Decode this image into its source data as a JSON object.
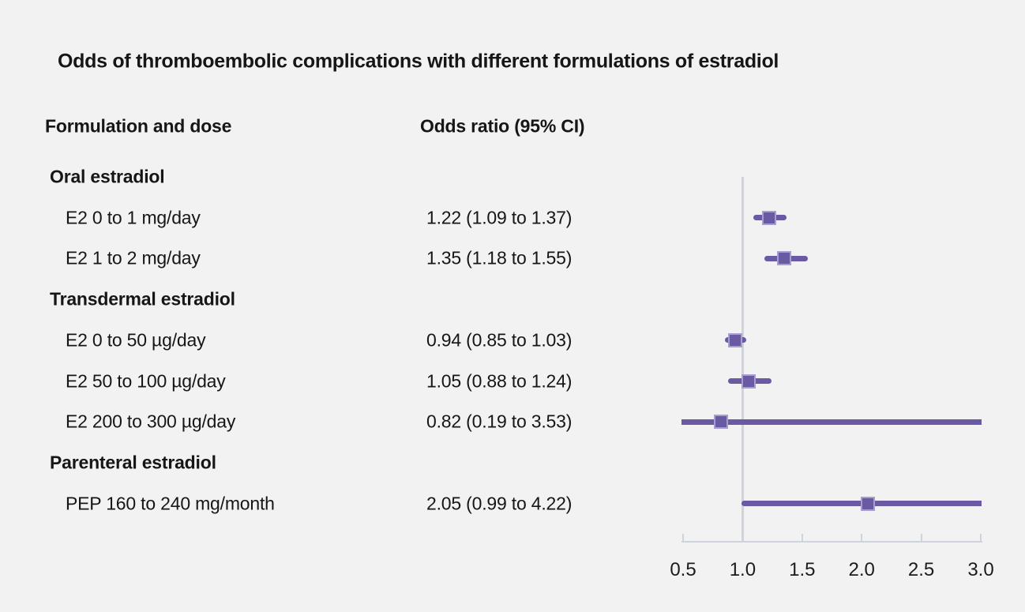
{
  "title": "Odds of thromboembolic complications with different formulations of estradiol",
  "columns": {
    "formulation": "Formulation and dose",
    "odds_ratio": "Odds ratio (95% CI)"
  },
  "chart_data": {
    "type": "forest",
    "title": "Odds of thromboembolic complications with different formulations of estradiol",
    "xlabel": "Odds ratio",
    "axis": {
      "min": 0.5,
      "max": 3.0,
      "reference_line": 1.0,
      "ticks": [
        0.5,
        1.0,
        1.5,
        2.0,
        2.5,
        3.0
      ],
      "tick_labels": [
        "0.5",
        "1.0",
        "1.5",
        "2.0",
        "2.5",
        "3.0"
      ]
    },
    "rows": [
      {
        "kind": "group",
        "label": "Oral estradiol"
      },
      {
        "kind": "item",
        "label": "E2 0 to 1 mg/day",
        "display": "1.22 (1.09 to 1.37)",
        "or": 1.22,
        "lo": 1.09,
        "hi": 1.37
      },
      {
        "kind": "item",
        "label": "E2 1 to 2 mg/day",
        "display": "1.35 (1.18 to 1.55)",
        "or": 1.35,
        "lo": 1.18,
        "hi": 1.55
      },
      {
        "kind": "group",
        "label": "Transdermal estradiol"
      },
      {
        "kind": "item",
        "label": "E2 0 to 50 µg/day",
        "display": "0.94 (0.85 to 1.03)",
        "or": 0.94,
        "lo": 0.85,
        "hi": 1.03
      },
      {
        "kind": "item",
        "label": "E2 50 to 100 µg/day",
        "display": "1.05 (0.88 to 1.24)",
        "or": 1.05,
        "lo": 0.88,
        "hi": 1.24
      },
      {
        "kind": "item",
        "label": "E2 200 to 300 µg/day",
        "display": "0.82 (0.19 to 3.53)",
        "or": 0.82,
        "lo": 0.19,
        "hi": 3.53
      },
      {
        "kind": "group",
        "label": "Parenteral estradiol"
      },
      {
        "kind": "item",
        "label": "PEP 160 to 240 mg/month",
        "display": "2.05 (0.99 to 4.22)",
        "or": 2.05,
        "lo": 0.99,
        "hi": 4.22
      }
    ],
    "colors": {
      "ci_bar": "#6a5aa3",
      "marker_fill": "#6a5aa3",
      "marker_border": "#a89dd0",
      "axis": "#cfd4dc",
      "background": "#f2f2f2",
      "text": "#161616"
    }
  }
}
